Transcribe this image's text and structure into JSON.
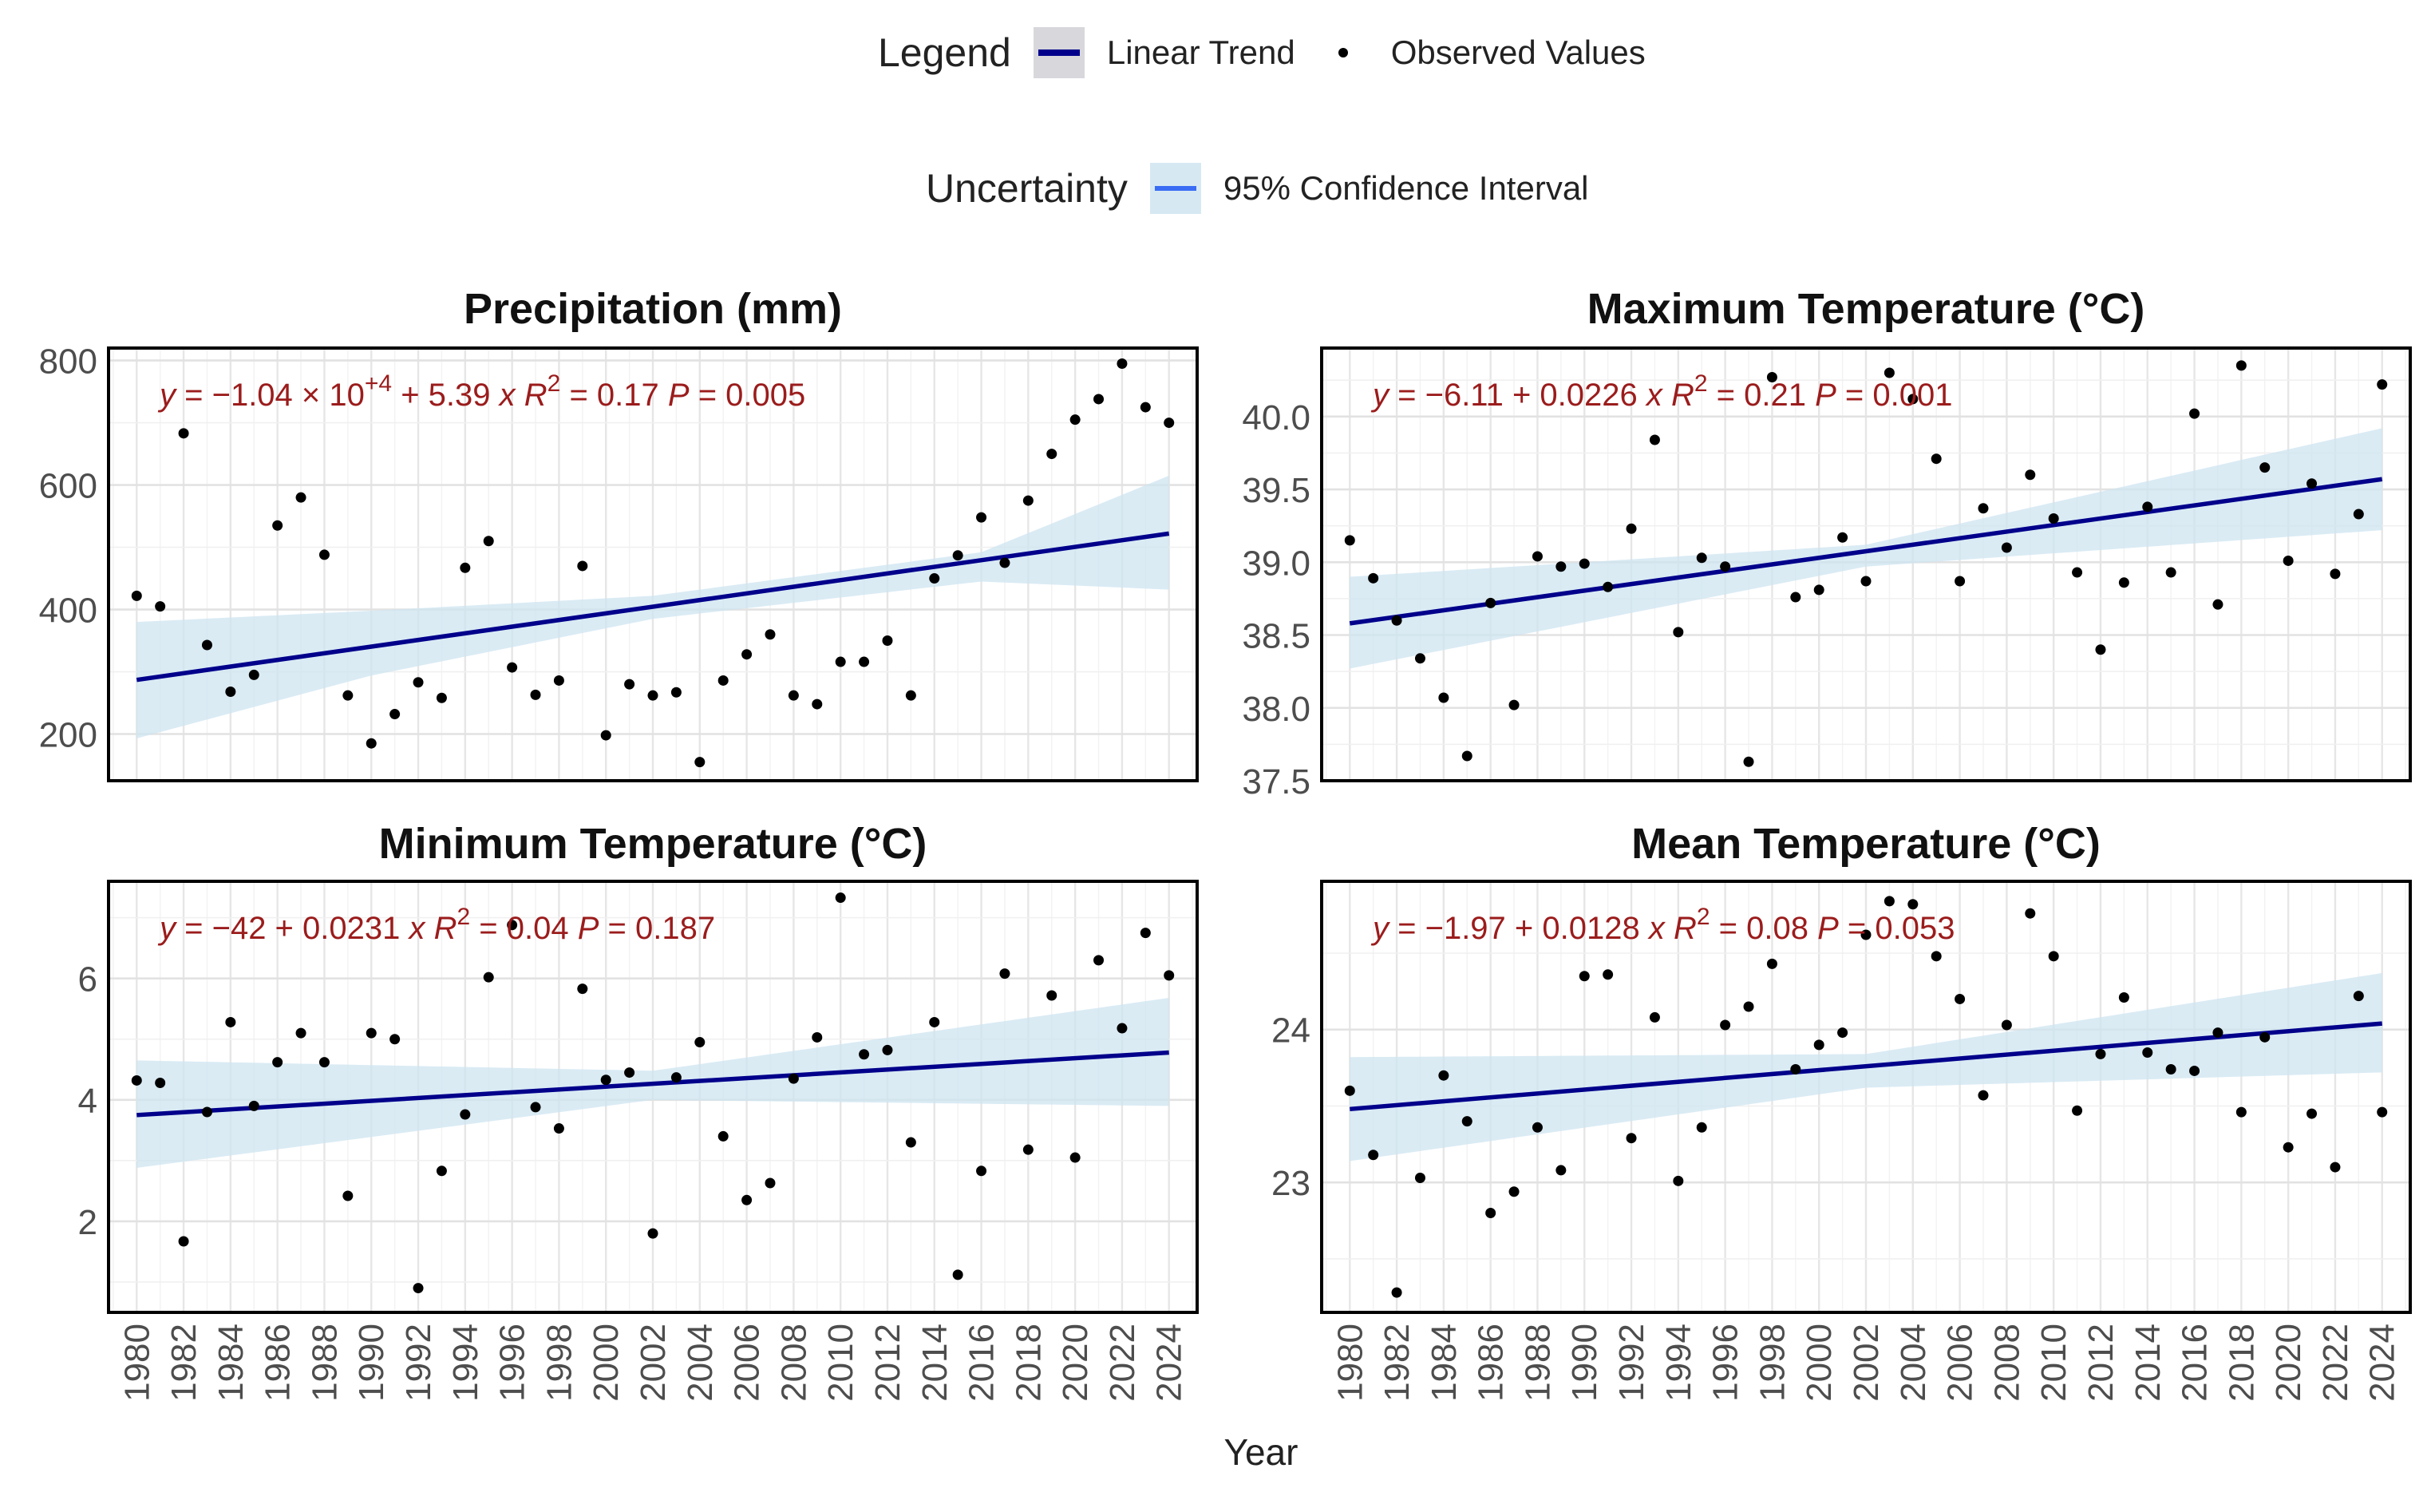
{
  "legend": {
    "title": "Legend",
    "trend_label": "Linear Trend",
    "observed_label": "Observed Values",
    "uncertainty_title": "Uncertainty",
    "ci_label": "95% Confidence Interval",
    "colors": {
      "trend": "#00008b",
      "ci_fill": "#cde4f0",
      "points": "#000000",
      "equation": "#9b1c1c"
    }
  },
  "xlabel": "Year",
  "chart_data": [
    {
      "type": "scatter",
      "title": "Precipitation (mm)",
      "xlabel": "Year",
      "ylabel": "",
      "xlim": [
        1978.8,
        2025.2
      ],
      "ylim": [
        125,
        820
      ],
      "yticks": [
        200,
        400,
        600,
        800
      ],
      "xticks": [
        1980,
        1982,
        1984,
        1986,
        1988,
        1990,
        1992,
        1994,
        1996,
        1998,
        2000,
        2002,
        2004,
        2006,
        2008,
        2010,
        2012,
        2014,
        2016,
        2018,
        2020,
        2022,
        2024
      ],
      "equation": {
        "intercept": "−1.04 × 10",
        "exponent": "+4",
        "slope": "+ 5.39",
        "r2_label": "= 0.17",
        "p_label": "= 0.005"
      },
      "series": [
        {
          "name": "Observed Values",
          "x": [
            1980,
            1981,
            1982,
            1983,
            1984,
            1985,
            1986,
            1987,
            1988,
            1989,
            1990,
            1991,
            1992,
            1993,
            1994,
            1995,
            1996,
            1997,
            1998,
            1999,
            2000,
            2001,
            2002,
            2003,
            2004,
            2005,
            2006,
            2007,
            2008,
            2009,
            2010,
            2011,
            2012,
            2013,
            2014,
            2015,
            2016,
            2017,
            2018,
            2019,
            2020,
            2021,
            2022,
            2023,
            2024
          ],
          "y": [
            422,
            405,
            683,
            343,
            268,
            295,
            535,
            580,
            488,
            262,
            185,
            232,
            283,
            258,
            467,
            510,
            307,
            263,
            286,
            470,
            198,
            280,
            262,
            267,
            155,
            286,
            328,
            360,
            262,
            248,
            316,
            316,
            350,
            262,
            450,
            487,
            548,
            475,
            575,
            650,
            705,
            738,
            795,
            725,
            700
          ]
        },
        {
          "name": "Linear Trend",
          "x": [
            1980,
            2024
          ],
          "y": [
            287,
            522
          ]
        },
        {
          "name": "95% Confidence Interval",
          "x": [
            1980,
            1990,
            2002,
            2016,
            2024
          ],
          "upper": [
            380,
            398,
            422,
            492,
            615
          ],
          "lower": [
            193,
            294,
            385,
            445,
            432
          ]
        }
      ]
    },
    {
      "type": "scatter",
      "title": "Maximum Temperature (°C)",
      "xlabel": "Year",
      "ylabel": "",
      "xlim": [
        1978.8,
        2025.2
      ],
      "ylim": [
        37.5,
        40.47
      ],
      "yticks": [
        37.5,
        38.0,
        38.5,
        39.0,
        39.5,
        40.0
      ],
      "yticks_labels": [
        "37.5",
        "38.0",
        "38.5",
        "39.0",
        "39.5",
        "40.0"
      ],
      "xticks": [
        1980,
        1982,
        1984,
        1986,
        1988,
        1990,
        1992,
        1994,
        1996,
        1998,
        2000,
        2002,
        2004,
        2006,
        2008,
        2010,
        2012,
        2014,
        2016,
        2018,
        2020,
        2022,
        2024
      ],
      "equation": {
        "intercept": "−6.11",
        "exponent": "",
        "slope": "+ 0.0226",
        "r2_label": "= 0.21",
        "p_label": "= 0.001"
      },
      "series": [
        {
          "name": "Observed Values",
          "x": [
            1980,
            1981,
            1982,
            1983,
            1984,
            1985,
            1986,
            1987,
            1988,
            1989,
            1990,
            1991,
            1992,
            1993,
            1994,
            1995,
            1996,
            1997,
            1998,
            1999,
            2000,
            2001,
            2002,
            2003,
            2004,
            2005,
            2006,
            2007,
            2008,
            2009,
            2010,
            2011,
            2012,
            2013,
            2014,
            2015,
            2016,
            2017,
            2018,
            2019,
            2020,
            2021,
            2022,
            2023,
            2024
          ],
          "y": [
            39.15,
            38.89,
            38.6,
            38.34,
            38.07,
            37.67,
            38.72,
            38.02,
            39.04,
            38.97,
            38.99,
            38.83,
            39.23,
            39.84,
            38.52,
            39.03,
            38.97,
            37.63,
            40.27,
            38.76,
            38.81,
            39.17,
            38.87,
            40.3,
            40.12,
            39.71,
            38.87,
            39.37,
            39.1,
            39.6,
            39.3,
            38.93,
            38.4,
            38.86,
            39.38,
            38.93,
            40.02,
            38.71,
            40.35,
            39.65,
            39.01,
            39.54,
            38.92,
            39.33,
            40.22
          ]
        },
        {
          "name": "Linear Trend",
          "x": [
            1980,
            2024
          ],
          "y": [
            38.58,
            39.57
          ]
        },
        {
          "name": "95% Confidence Interval",
          "x": [
            1980,
            2002,
            2024
          ],
          "upper": [
            38.9,
            39.12,
            39.92
          ],
          "lower": [
            38.27,
            38.97,
            39.22
          ]
        }
      ]
    },
    {
      "type": "scatter",
      "title": "Minimum Temperature (°C)",
      "xlabel": "Year",
      "ylabel": "",
      "xlim": [
        1978.8,
        2025.2
      ],
      "ylim": [
        0.5,
        7.6
      ],
      "yticks": [
        2,
        4,
        6
      ],
      "xticks": [
        1980,
        1982,
        1984,
        1986,
        1988,
        1990,
        1992,
        1994,
        1996,
        1998,
        2000,
        2002,
        2004,
        2006,
        2008,
        2010,
        2012,
        2014,
        2016,
        2018,
        2020,
        2022,
        2024
      ],
      "equation": {
        "intercept": "−42",
        "exponent": "",
        "slope": "+ 0.0231",
        "r2_label": "= 0.04",
        "p_label": "= 0.187"
      },
      "series": [
        {
          "name": "Observed Values",
          "x": [
            1980,
            1981,
            1982,
            1983,
            1984,
            1985,
            1986,
            1987,
            1988,
            1989,
            1990,
            1991,
            1992,
            1993,
            1994,
            1995,
            1996,
            1997,
            1998,
            1999,
            2000,
            2001,
            2002,
            2003,
            2004,
            2005,
            2006,
            2007,
            2008,
            2009,
            2010,
            2011,
            2012,
            2013,
            2014,
            2015,
            2016,
            2017,
            2018,
            2019,
            2020,
            2021,
            2022,
            2023,
            2024
          ],
          "y": [
            4.32,
            4.28,
            1.67,
            3.8,
            5.28,
            3.9,
            4.62,
            5.1,
            4.62,
            2.42,
            5.1,
            5.0,
            0.9,
            2.83,
            3.76,
            6.02,
            6.88,
            3.88,
            3.53,
            5.83,
            4.33,
            4.45,
            1.8,
            4.37,
            4.95,
            3.4,
            2.35,
            2.63,
            4.35,
            5.03,
            7.33,
            4.75,
            4.82,
            3.3,
            5.28,
            1.12,
            2.83,
            6.08,
            3.18,
            5.72,
            3.05,
            6.3,
            5.18,
            6.75,
            6.05
          ]
        },
        {
          "name": "Linear Trend",
          "x": [
            1980,
            2024
          ],
          "y": [
            3.75,
            4.78
          ]
        },
        {
          "name": "95% Confidence Interval",
          "x": [
            1980,
            2002,
            2024
          ],
          "upper": [
            4.65,
            4.48,
            5.68
          ],
          "lower": [
            2.88,
            4.0,
            3.9
          ]
        }
      ]
    },
    {
      "type": "scatter",
      "title": "Mean Temperature (°C)",
      "xlabel": "Year",
      "ylabel": "",
      "xlim": [
        1978.8,
        2025.2
      ],
      "ylim": [
        22.15,
        24.97
      ],
      "yticks": [
        23,
        24
      ],
      "xticks": [
        1980,
        1982,
        1984,
        1986,
        1988,
        1990,
        1992,
        1994,
        1996,
        1998,
        2000,
        2002,
        2004,
        2006,
        2008,
        2010,
        2012,
        2014,
        2016,
        2018,
        2020,
        2022,
        2024
      ],
      "equation": {
        "intercept": "−1.97",
        "exponent": "",
        "slope": "+ 0.0128",
        "r2_label": "= 0.08",
        "p_label": "= 0.053"
      },
      "series": [
        {
          "name": "Observed Values",
          "x": [
            1980,
            1981,
            1982,
            1983,
            1984,
            1985,
            1986,
            1987,
            1988,
            1989,
            1990,
            1991,
            1992,
            1993,
            1994,
            1995,
            1996,
            1997,
            1998,
            1999,
            2000,
            2001,
            2002,
            2003,
            2004,
            2005,
            2006,
            2007,
            2008,
            2009,
            2010,
            2011,
            2012,
            2013,
            2014,
            2015,
            2016,
            2017,
            2018,
            2019,
            2020,
            2021,
            2022,
            2023,
            2024
          ],
          "y": [
            23.6,
            23.18,
            22.28,
            23.03,
            23.7,
            23.4,
            22.8,
            22.94,
            23.36,
            23.08,
            24.35,
            24.36,
            23.29,
            24.08,
            23.01,
            23.36,
            24.03,
            24.15,
            24.43,
            23.74,
            23.9,
            23.98,
            24.62,
            24.84,
            24.82,
            24.48,
            24.2,
            23.57,
            24.03,
            24.76,
            24.48,
            23.47,
            23.84,
            24.21,
            23.85,
            23.74,
            23.73,
            23.98,
            23.46,
            23.95,
            23.23,
            23.45,
            23.1,
            24.22,
            23.46
          ]
        },
        {
          "name": "Linear Trend",
          "x": [
            1980,
            2024
          ],
          "y": [
            23.48,
            24.04
          ]
        },
        {
          "name": "95% Confidence Interval",
          "x": [
            1980,
            2002,
            2024
          ],
          "upper": [
            23.82,
            23.84,
            24.37
          ],
          "lower": [
            23.14,
            23.62,
            23.72
          ]
        }
      ]
    }
  ]
}
